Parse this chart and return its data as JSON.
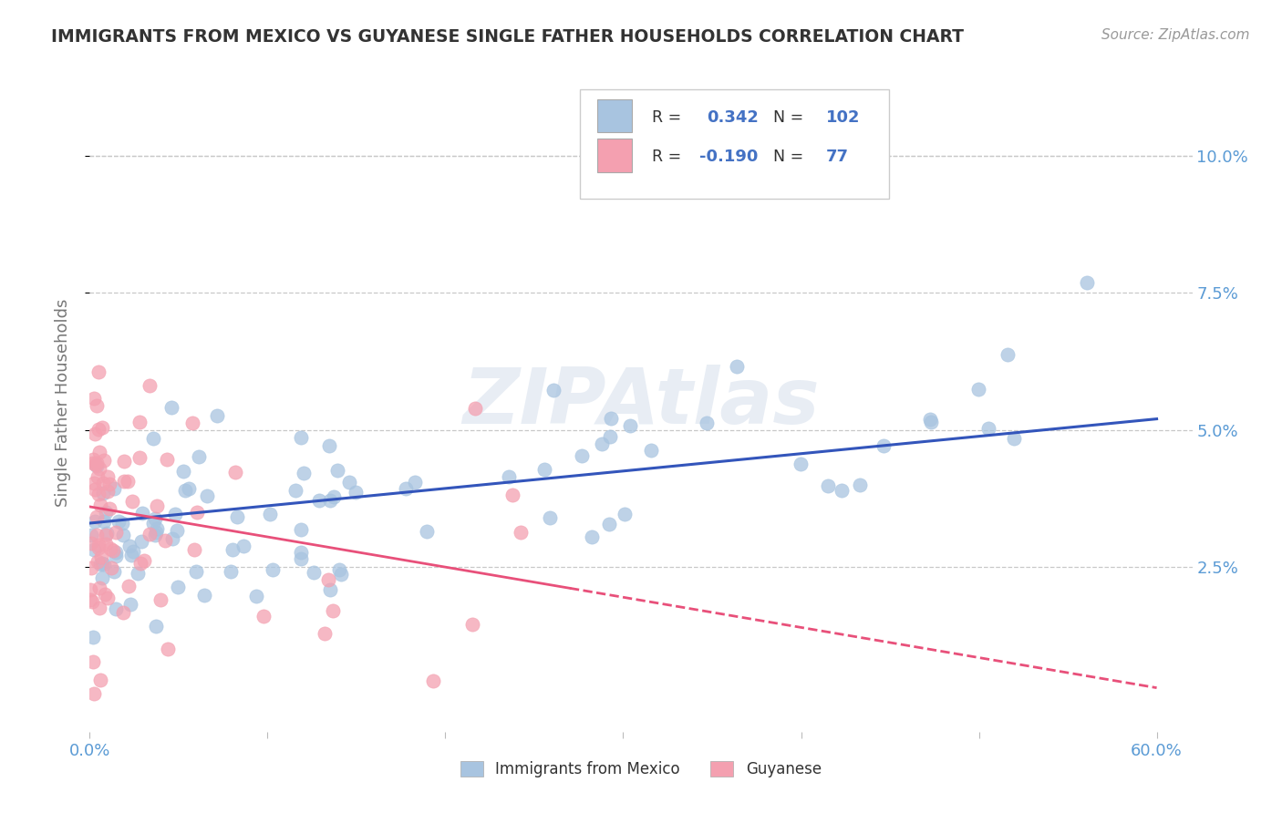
{
  "title": "IMMIGRANTS FROM MEXICO VS GUYANESE SINGLE FATHER HOUSEHOLDS CORRELATION CHART",
  "source_text": "Source: ZipAtlas.com",
  "ylabel": "Single Father Households",
  "watermark": "ZIPAtlas",
  "legend_labels": [
    "Immigrants from Mexico",
    "Guyanese"
  ],
  "blue_R": 0.342,
  "blue_N": 102,
  "pink_R": -0.19,
  "pink_N": 77,
  "xlim": [
    0.0,
    0.62
  ],
  "ylim": [
    -0.005,
    0.115
  ],
  "yticks": [
    0.025,
    0.05,
    0.075,
    0.1
  ],
  "ytick_labels": [
    "2.5%",
    "5.0%",
    "7.5%",
    "10.0%"
  ],
  "xticks": [
    0.0,
    0.6
  ],
  "xtick_labels": [
    "0.0%",
    "60.0%"
  ],
  "background_color": "#ffffff",
  "plot_bg_color": "#ffffff",
  "grid_color": "#c8c8c8",
  "title_color": "#333333",
  "axis_label_color": "#777777",
  "tick_color": "#5b9bd5",
  "blue_dot_color": "#a8c4e0",
  "pink_dot_color": "#f4a0b0",
  "blue_line_color": "#3355bb",
  "pink_line_color": "#e8507a",
  "legend_R_color": "#4472c4",
  "legend_text_color": "#333333"
}
